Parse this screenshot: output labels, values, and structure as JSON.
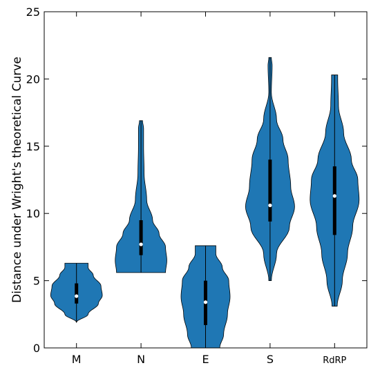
{
  "chart_data": {
    "type": "violin",
    "title": "",
    "xlabel": "",
    "ylabel": "Distance under Wright's theoretical Curve",
    "ylim": [
      0,
      25
    ],
    "yticks": [
      0,
      5,
      10,
      15,
      20,
      25
    ],
    "grid": false,
    "color": "#1f77b4",
    "categories": [
      "M",
      "N",
      "E",
      "S",
      "RdRP"
    ],
    "series": [
      {
        "category": "M",
        "min": 1.9,
        "max": 6.3,
        "q1": 3.3,
        "median": 3.85,
        "q3": 4.8,
        "density": [
          [
            1.9,
            0.0
          ],
          [
            2.5,
            0.45
          ],
          [
            3.3,
            0.85
          ],
          [
            3.9,
            1.0
          ],
          [
            4.6,
            0.95
          ],
          [
            5.4,
            0.65
          ],
          [
            6.0,
            0.45
          ],
          [
            6.3,
            0.45
          ]
        ]
      },
      {
        "category": "N",
        "min": 5.6,
        "max": 16.9,
        "q1": 6.9,
        "median": 7.7,
        "q3": 9.5,
        "density": [
          [
            5.6,
            0.95
          ],
          [
            6.5,
            1.0
          ],
          [
            7.5,
            0.95
          ],
          [
            8.5,
            0.7
          ],
          [
            9.5,
            0.45
          ],
          [
            11.0,
            0.22
          ],
          [
            13.0,
            0.12
          ],
          [
            15.0,
            0.1
          ],
          [
            16.3,
            0.1
          ],
          [
            16.9,
            0.06
          ]
        ]
      },
      {
        "category": "E",
        "min": 0.0,
        "max": 7.6,
        "q1": 1.7,
        "median": 3.4,
        "q3": 5.0,
        "density": [
          [
            0.0,
            0.55
          ],
          [
            1.0,
            0.7
          ],
          [
            2.5,
            0.85
          ],
          [
            3.8,
            0.95
          ],
          [
            5.0,
            0.9
          ],
          [
            6.0,
            0.65
          ],
          [
            7.0,
            0.4
          ],
          [
            7.6,
            0.4
          ]
        ]
      },
      {
        "category": "S",
        "min": 5.0,
        "max": 21.6,
        "q1": 9.4,
        "median": 10.6,
        "q3": 14.0,
        "density": [
          [
            5.0,
            0.05
          ],
          [
            7.0,
            0.25
          ],
          [
            9.0,
            0.75
          ],
          [
            10.5,
            0.95
          ],
          [
            12.0,
            0.8
          ],
          [
            14.0,
            0.7
          ],
          [
            15.5,
            0.5
          ],
          [
            17.0,
            0.25
          ],
          [
            19.0,
            0.05
          ],
          [
            21.0,
            0.08
          ],
          [
            21.6,
            0.05
          ]
        ]
      },
      {
        "category": "RdRP",
        "min": 3.1,
        "max": 20.3,
        "q1": 8.4,
        "median": 11.3,
        "q3": 13.5,
        "density": [
          [
            3.1,
            0.1
          ],
          [
            5.0,
            0.3
          ],
          [
            7.0,
            0.5
          ],
          [
            9.0,
            0.7
          ],
          [
            11.0,
            0.95
          ],
          [
            12.5,
            0.9
          ],
          [
            14.0,
            0.65
          ],
          [
            16.0,
            0.35
          ],
          [
            18.0,
            0.15
          ],
          [
            20.0,
            0.12
          ],
          [
            20.3,
            0.12
          ]
        ]
      }
    ]
  }
}
